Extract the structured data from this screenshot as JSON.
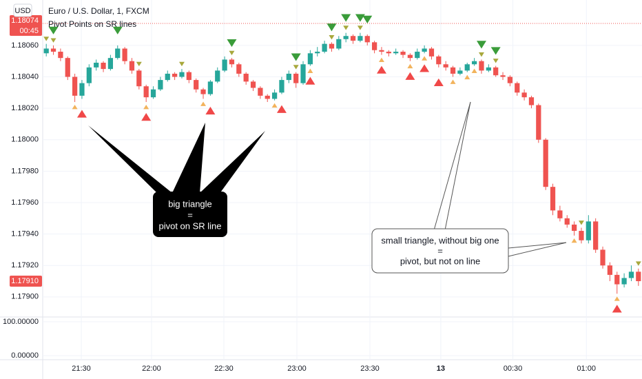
{
  "chart_data": {
    "type": "candlestick",
    "title": "Euro / U.S. Dollar, 1, FXCM",
    "subtitle": "Pivot Points on SR lines",
    "currency": "USD",
    "open": [
      1.18055,
      1.18058,
      1.18056,
      1.18052,
      1.1804,
      1.18028,
      1.18036,
      1.18046,
      1.18049,
      1.18045,
      1.18052,
      1.18058,
      1.1805,
      1.18044,
      1.18034,
      1.18027,
      1.18032,
      1.18038,
      1.18042,
      1.1804,
      1.18043,
      1.18038,
      1.18032,
      1.18029,
      1.18037,
      1.18044,
      1.18051,
      1.18048,
      1.18042,
      1.18037,
      1.18033,
      1.18028,
      1.18026,
      1.1803,
      1.18038,
      1.18042,
      1.18036,
      1.18048,
      1.18055,
      1.18056,
      1.18061,
      1.18058,
      1.18064,
      1.18066,
      1.18063,
      1.18066,
      1.18062,
      1.18057,
      1.18056,
      1.18055,
      1.18056,
      1.18054,
      1.18052,
      1.18056,
      1.18058,
      1.18053,
      1.18048,
      1.18046,
      1.18042,
      1.18044,
      1.18048,
      1.1805,
      1.18044,
      1.18046,
      1.18041,
      1.1804,
      1.18036,
      1.1803,
      1.18027,
      1.18022,
      1.18,
      1.1797,
      1.17955,
      1.1795,
      1.17946,
      1.17942,
      1.17936,
      1.17948,
      1.1793,
      1.1792,
      1.17914,
      1.17908,
      1.17912,
      1.17916
    ],
    "high": [
      1.18061,
      1.1806,
      1.18058,
      1.18053,
      1.18042,
      1.18038,
      1.18048,
      1.18051,
      1.1805,
      1.18054,
      1.1806,
      1.18059,
      1.18052,
      1.18045,
      1.18035,
      1.18034,
      1.1804,
      1.18044,
      1.18043,
      1.18045,
      1.18044,
      1.18039,
      1.18033,
      1.18038,
      1.18046,
      1.18053,
      1.18052,
      1.18049,
      1.18043,
      1.18038,
      1.18034,
      1.18029,
      1.18032,
      1.1804,
      1.18044,
      1.18043,
      1.1805,
      1.18057,
      1.18059,
      1.18063,
      1.18062,
      1.18066,
      1.18068,
      1.18067,
      1.18068,
      1.18067,
      1.18063,
      1.18059,
      1.18057,
      1.18058,
      1.18057,
      1.18055,
      1.18058,
      1.1806,
      1.18059,
      1.18054,
      1.1805,
      1.18047,
      1.18046,
      1.18049,
      1.18052,
      1.18051,
      1.18048,
      1.18047,
      1.18043,
      1.18041,
      1.18037,
      1.18032,
      1.18028,
      1.18023,
      1.18001,
      1.17972,
      1.17958,
      1.17952,
      1.17948,
      1.17944,
      1.17952,
      1.1795,
      1.17932,
      1.17922,
      1.17916,
      1.17915,
      1.1792,
      1.17918
    ],
    "low": [
      1.18053,
      1.18054,
      1.1805,
      1.18038,
      1.18024,
      1.18026,
      1.18034,
      1.18044,
      1.18043,
      1.18044,
      1.18051,
      1.18048,
      1.18042,
      1.18032,
      1.18024,
      1.18026,
      1.18031,
      1.18037,
      1.18038,
      1.18039,
      1.18036,
      1.1803,
      1.18026,
      1.18028,
      1.18036,
      1.18043,
      1.18046,
      1.1804,
      1.18035,
      1.18031,
      1.18026,
      1.18024,
      1.18025,
      1.18029,
      1.18036,
      1.18033,
      1.18035,
      1.18047,
      1.18053,
      1.18055,
      1.18056,
      1.18057,
      1.18062,
      1.18061,
      1.18062,
      1.1806,
      1.18055,
      1.18054,
      1.18053,
      1.18054,
      1.18052,
      1.1805,
      1.18051,
      1.18055,
      1.18051,
      1.18046,
      1.18044,
      1.1804,
      1.18041,
      1.18043,
      1.18047,
      1.18042,
      1.18043,
      1.1804,
      1.18038,
      1.18034,
      1.18028,
      1.18025,
      1.1802,
      1.17998,
      1.17968,
      1.17952,
      1.17948,
      1.17944,
      1.17939,
      1.17934,
      1.17934,
      1.17928,
      1.17918,
      1.1791,
      1.17902,
      1.17906,
      1.1791,
      1.17907
    ],
    "close": [
      1.18058,
      1.18056,
      1.18052,
      1.1804,
      1.18028,
      1.18036,
      1.18046,
      1.18049,
      1.18045,
      1.18052,
      1.18058,
      1.1805,
      1.18044,
      1.18034,
      1.18027,
      1.18032,
      1.18038,
      1.18042,
      1.1804,
      1.18043,
      1.18038,
      1.18032,
      1.18029,
      1.18037,
      1.18044,
      1.18051,
      1.18048,
      1.18042,
      1.18037,
      1.18033,
      1.18028,
      1.18026,
      1.1803,
      1.18038,
      1.18042,
      1.18036,
      1.18048,
      1.18055,
      1.18056,
      1.18061,
      1.18058,
      1.18064,
      1.18066,
      1.18063,
      1.18066,
      1.18062,
      1.18057,
      1.18056,
      1.18055,
      1.18056,
      1.18054,
      1.18052,
      1.18056,
      1.18058,
      1.18053,
      1.18048,
      1.18046,
      1.18042,
      1.18044,
      1.18048,
      1.1805,
      1.18044,
      1.18046,
      1.18041,
      1.1804,
      1.18036,
      1.1803,
      1.18027,
      1.18022,
      1.18,
      1.1797,
      1.17955,
      1.1795,
      1.17946,
      1.17942,
      1.17936,
      1.17948,
      1.1793,
      1.1792,
      1.17914,
      1.17908,
      1.17912,
      1.17916,
      1.1791
    ],
    "up_color": "#26a69a",
    "down_color": "#ef5350",
    "pivots": {
      "big_high": [
        1,
        10,
        26,
        35,
        40,
        42,
        44,
        45,
        61,
        63
      ],
      "big_high_color": "#3a9c3a",
      "small_high": [
        0,
        1,
        13,
        19,
        26,
        35,
        40,
        42,
        44,
        61,
        63,
        75,
        83
      ],
      "small_high_color": "#a8a83c",
      "big_low": [
        5,
        14,
        23,
        33,
        37,
        47,
        51,
        53,
        55,
        80
      ],
      "big_low_color": "#f04848",
      "small_low": [
        4,
        14,
        22,
        32,
        37,
        47,
        51,
        53,
        57,
        59,
        60,
        74,
        80
      ],
      "small_low_color": "#f2b35c"
    },
    "xlim": [
      0,
      84
    ],
    "xticks": [
      {
        "value": 5.41,
        "label": "21:30"
      },
      {
        "value": 15.25,
        "label": "22:00"
      },
      {
        "value": 25.39,
        "label": "22:30"
      },
      {
        "value": 35.63,
        "label": "23:00"
      },
      {
        "value": 45.86,
        "label": "23:30"
      },
      {
        "value": 55.8,
        "label": "13"
      },
      {
        "value": 65.9,
        "label": "00:30"
      },
      {
        "value": 76.2,
        "label": "01:00"
      }
    ],
    "ylim": [
      1.178894,
      1.180889
    ],
    "yticks": [
      {
        "value": 1.1806,
        "label": "1.18060"
      },
      {
        "value": 1.1804,
        "label": "1.18040"
      },
      {
        "value": 1.1802,
        "label": "1.18020"
      },
      {
        "value": 1.18,
        "label": "1.18000"
      },
      {
        "value": 1.1798,
        "label": "1.17980"
      },
      {
        "value": 1.1796,
        "label": "1.17960"
      },
      {
        "value": 1.1794,
        "label": "1.17940"
      },
      {
        "value": 1.1792,
        "label": "1.17920"
      },
      {
        "value": 1.179,
        "label": "1.17900"
      }
    ],
    "grid": true,
    "price_badges": [
      {
        "value": 1.18074,
        "label": "1.18074",
        "countdown": "00:45"
      },
      {
        "value": 1.1791,
        "label": "1.17910"
      }
    ],
    "lower_pane": {
      "ylim": [
        -8,
        110
      ],
      "yticks": [
        {
          "value": 100,
          "label": "100.00000"
        },
        {
          "value": 0,
          "label": "0.00000"
        }
      ]
    },
    "annotations": [
      {
        "lines": [
          "big triangle",
          "=",
          "pivot on SR line"
        ]
      },
      {
        "lines": [
          "small triangle, without big one",
          "=",
          "pivot, but not on line"
        ]
      }
    ]
  }
}
